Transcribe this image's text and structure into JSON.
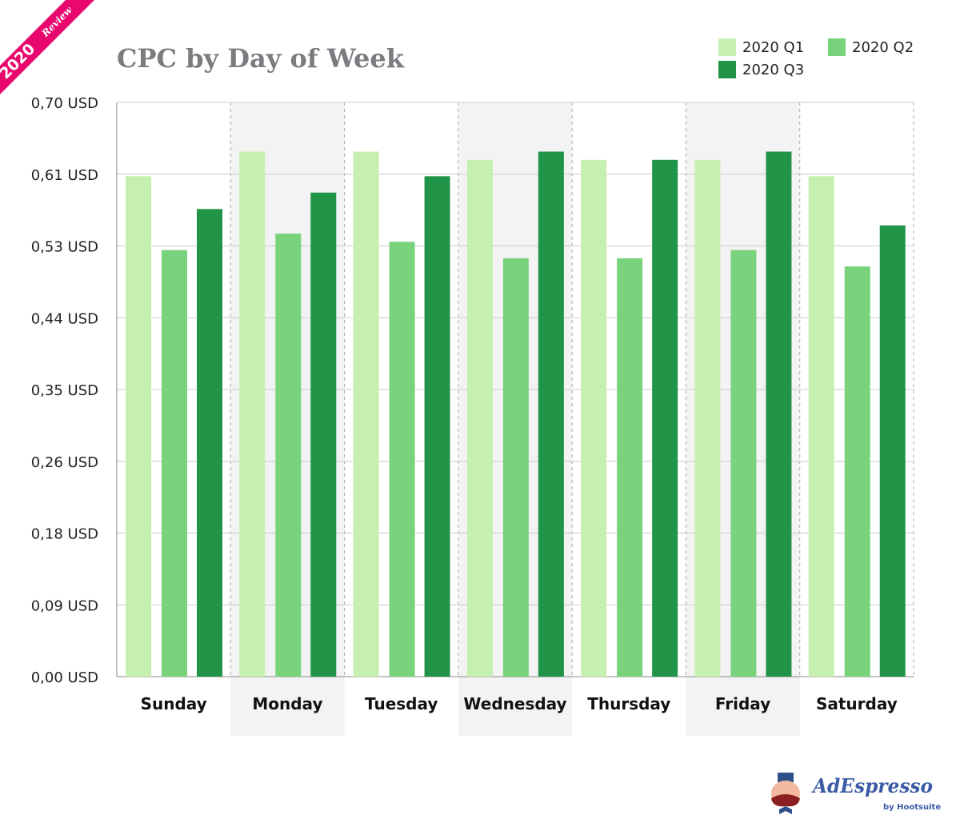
{
  "badge": {
    "year": "2020",
    "text": "Review",
    "color": "#e8086e"
  },
  "logo": {
    "brand": "AdEspresso",
    "sub": "by Hootsuite"
  },
  "chart_data": {
    "type": "bar",
    "title": "CPC by Day of Week",
    "categories": [
      "Sunday",
      "Monday",
      "Tuesday",
      "Wednesday",
      "Thursday",
      "Friday",
      "Saturday"
    ],
    "series": [
      {
        "name": "2020 Q1",
        "color": "#c5f0b0",
        "values": [
          0.61,
          0.64,
          0.64,
          0.63,
          0.63,
          0.63,
          0.61
        ]
      },
      {
        "name": "2020 Q2",
        "color": "#79d27c",
        "values": [
          0.52,
          0.54,
          0.53,
          0.51,
          0.51,
          0.52,
          0.5
        ]
      },
      {
        "name": "2020 Q3",
        "color": "#229447",
        "values": [
          0.57,
          0.59,
          0.61,
          0.64,
          0.63,
          0.64,
          0.55
        ]
      }
    ],
    "yticks": [
      0,
      0.0875,
      0.175,
      0.2625,
      0.35,
      0.4375,
      0.525,
      0.6125,
      0.7
    ],
    "ytick_labels": [
      "0,00 USD",
      "0,09 USD",
      "0,18 USD",
      "0,26 USD",
      "0,35 USD",
      "0,44 USD",
      "0,53 USD",
      "0,61 USD",
      "0,70 USD"
    ],
    "ylim": [
      0,
      0.7
    ],
    "grid": true,
    "legend_position": "top-right",
    "shaded_categories": [
      "Monday",
      "Wednesday",
      "Friday"
    ]
  }
}
